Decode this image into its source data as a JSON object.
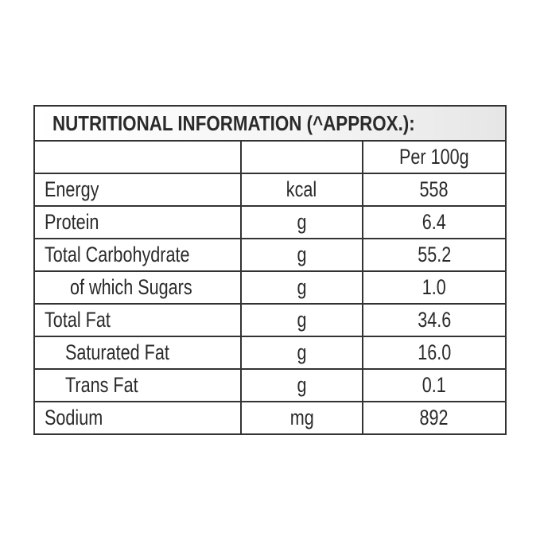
{
  "table": {
    "title": "NUTRITIONAL INFORMATION (^APPROX.):",
    "header_per": "Per 100g",
    "rows": [
      [
        "Energy",
        "kcal",
        "558"
      ],
      [
        "Protein",
        "g",
        "6.4"
      ],
      [
        "Total Carbohydrate",
        "g",
        "55.2"
      ],
      [
        "of which Sugars",
        "g",
        "1.0"
      ],
      [
        "Total Fat",
        "g",
        "34.6"
      ],
      [
        "Saturated Fat",
        "g",
        "16.0"
      ],
      [
        "Trans Fat",
        "g",
        "0.1"
      ],
      [
        "Sodium",
        "mg",
        "892"
      ]
    ]
  }
}
